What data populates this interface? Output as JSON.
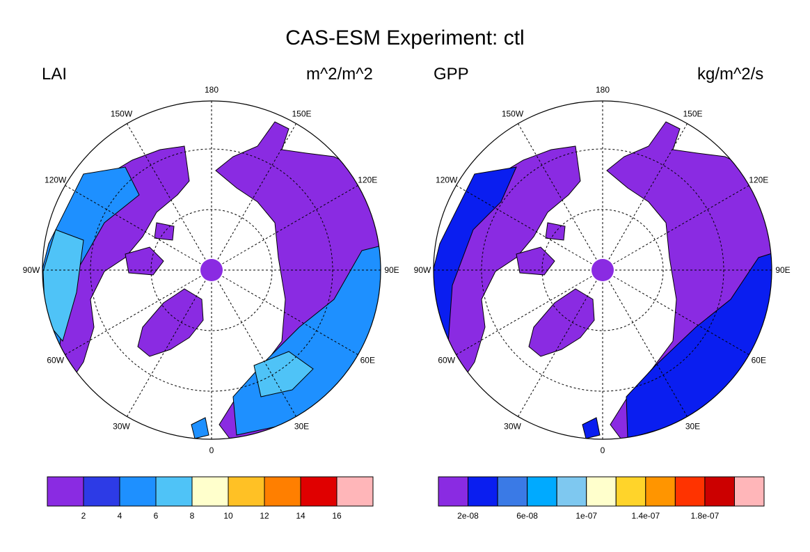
{
  "title": "CAS-ESM Experiment: ctl",
  "panels": [
    {
      "variable": "LAI",
      "units": "m^2/m^2",
      "colorbar": {
        "colors": [
          "#8a2be2",
          "#2d3be6",
          "#1e90ff",
          "#4fc3f7",
          "#ffffcc",
          "#ffc125",
          "#ff7f00",
          "#e00000",
          "#ffb6b9"
        ],
        "labels": [
          "2",
          "4",
          "6",
          "8",
          "10",
          "12",
          "14",
          "16"
        ]
      }
    },
    {
      "variable": "GPP",
      "units": "kg/m^2/s",
      "colorbar": {
        "colors": [
          "#8a2be2",
          "#0a1ef0",
          "#3a7ae6",
          "#00aaff",
          "#7ec8f0",
          "#ffffcc",
          "#ffd42a",
          "#ff9500",
          "#ff3300",
          "#cc0000",
          "#ffb6b9"
        ],
        "labels": [
          "2e-08",
          "6e-08",
          "1e-07",
          "1.4e-07",
          "1.8e-07"
        ]
      }
    }
  ],
  "longitude_labels": [
    "180",
    "150E",
    "120E",
    "90E",
    "60E",
    "30E",
    "0",
    "30W",
    "60W",
    "90W",
    "120W",
    "150W"
  ]
}
